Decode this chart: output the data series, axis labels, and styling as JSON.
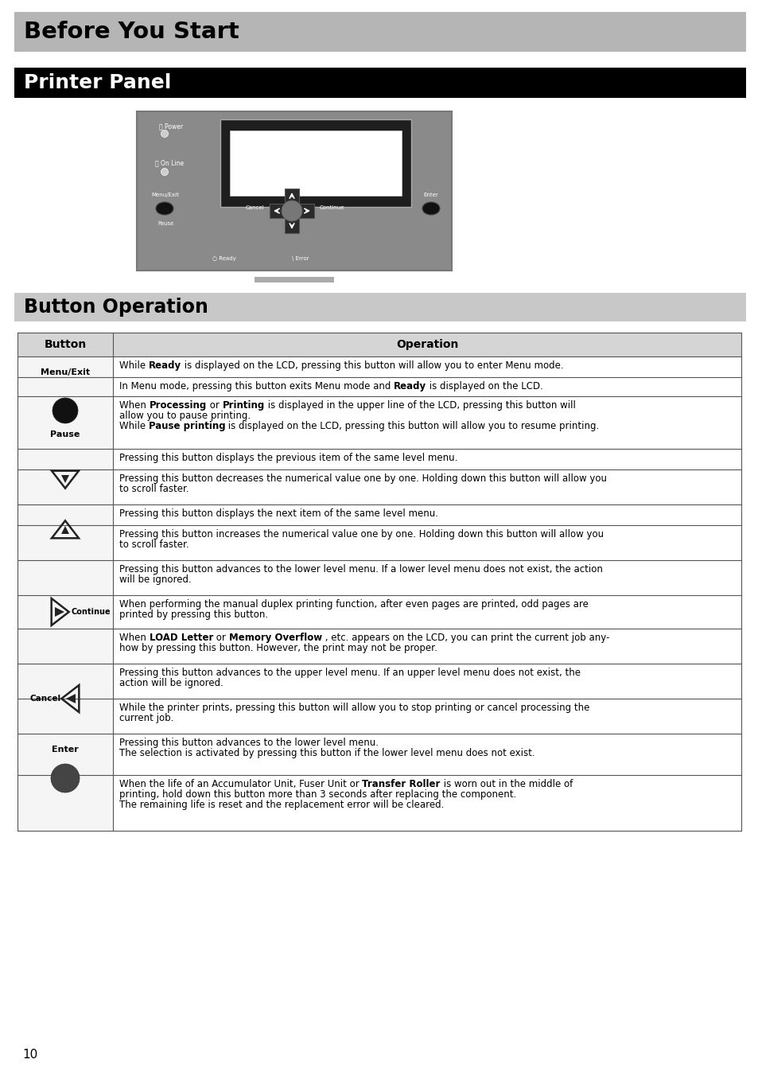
{
  "page_bg": "#ffffff",
  "title1_text": "Before You Start",
  "title1_bg": "#b5b5b5",
  "title1_color": "#000000",
  "title2_text": "Printer Panel",
  "title2_bg": "#000000",
  "title2_color": "#ffffff",
  "title3_text": "Button Operation",
  "title3_bg": "#c8c8c8",
  "title3_color": "#000000",
  "table_header": [
    "Button",
    "Operation"
  ],
  "page_number": "10"
}
